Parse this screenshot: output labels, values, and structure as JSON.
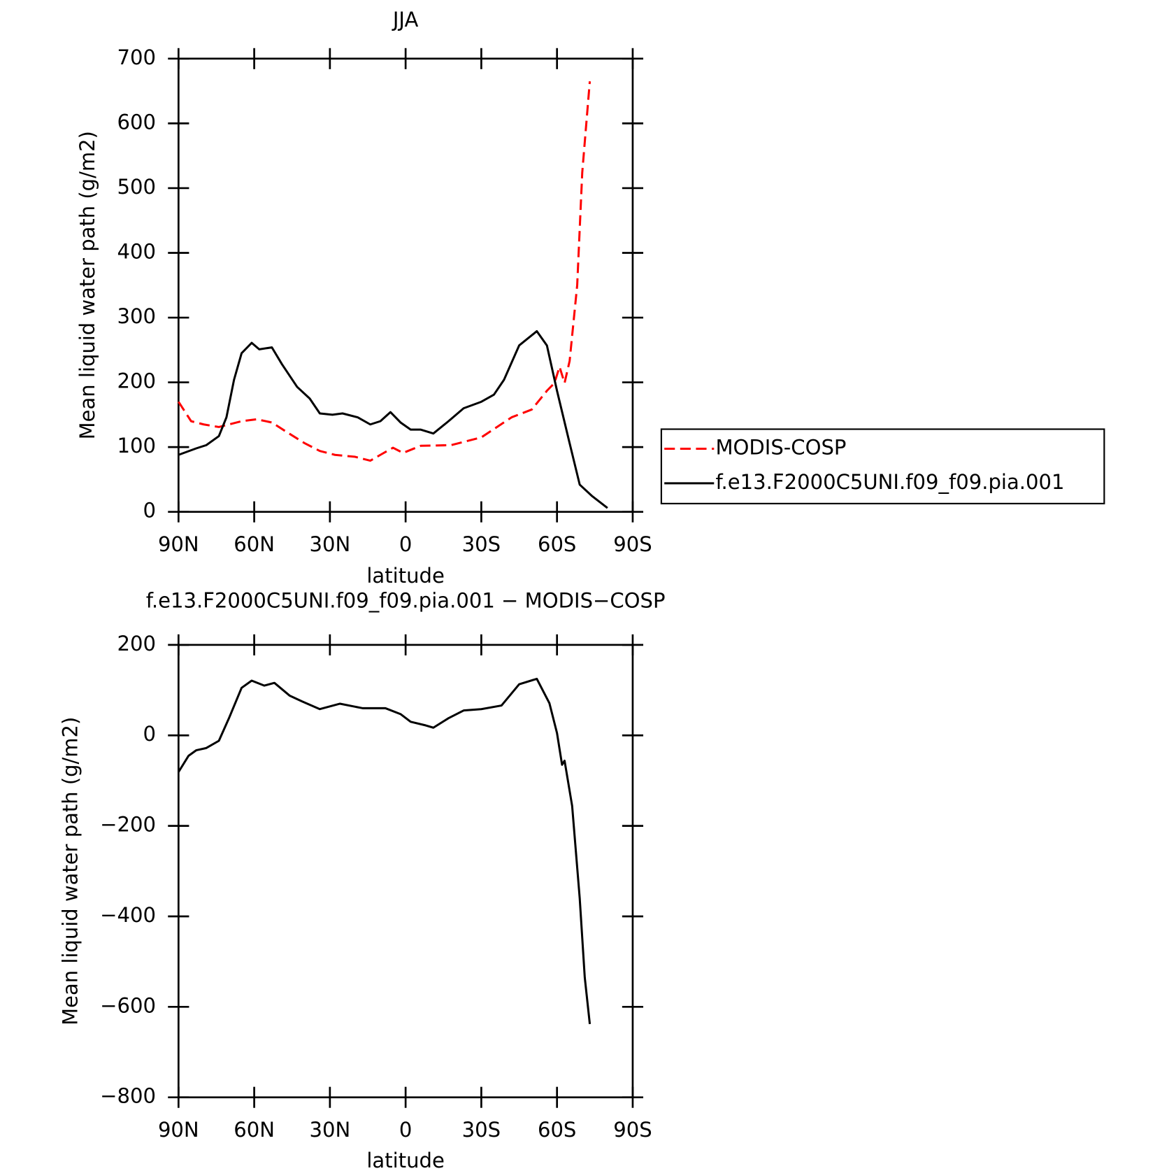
{
  "chart_data": [
    {
      "type": "line",
      "title": "JJA",
      "xlabel": "latitude",
      "ylabel": "Mean liquid water path (g/m2)",
      "xlim": [
        90,
        -90
      ],
      "xticks": [
        {
          "value": 90,
          "label": "90N"
        },
        {
          "value": 60,
          "label": "60N"
        },
        {
          "value": 30,
          "label": "30N"
        },
        0,
        {
          "value": -30,
          "label": "30S"
        },
        {
          "value": -60,
          "label": "60S"
        },
        {
          "value": -90,
          "label": "90S"
        }
      ],
      "ylim": [
        0,
        700
      ],
      "yticks": [
        0,
        100,
        200,
        300,
        400,
        500,
        600,
        700
      ],
      "legend": "right",
      "series": [
        {
          "name": "MODIS-COSP",
          "color": "#ff0000",
          "dash": true,
          "x": [
            90,
            88,
            85,
            80,
            74,
            70,
            65,
            59,
            53,
            47,
            40,
            34,
            28,
            20,
            14,
            10,
            5,
            1,
            -6,
            -18,
            -30,
            -42,
            -50,
            -56,
            -59,
            -61,
            -63,
            -65,
            -68,
            -70,
            -73
          ],
          "values": [
            170,
            158,
            140,
            135,
            131,
            135,
            140,
            143,
            138,
            123,
            106,
            94,
            88,
            85,
            79,
            88,
            99,
            91,
            102,
            103,
            115,
            146,
            158,
            187,
            199,
            224,
            199,
            233,
            350,
            524,
            665
          ]
        },
        {
          "name": "f.e13.F2000C5UNI.f09_f09.pia.001",
          "color": "#000000",
          "dash": false,
          "x": [
            90,
            83,
            79,
            74,
            71,
            68,
            65,
            61,
            58,
            53,
            49,
            43,
            38,
            34,
            29,
            25,
            19,
            14,
            10,
            6,
            2,
            -2,
            -6,
            -11,
            -17,
            -23,
            -30,
            -35,
            -39,
            -45,
            -52,
            -56,
            -60,
            -65,
            -69,
            -74,
            -80
          ],
          "values": [
            88,
            98,
            103,
            117,
            146,
            204,
            245,
            261,
            251,
            254,
            228,
            193,
            175,
            152,
            150,
            152,
            146,
            135,
            140,
            154,
            138,
            127,
            127,
            121,
            140,
            160,
            170,
            181,
            204,
            257,
            279,
            257,
            187,
            106,
            42,
            24,
            6
          ]
        }
      ]
    },
    {
      "type": "line",
      "title": "f.e13.F2000C5UNI.f09_f09.pia.001 − MODIS−COSP",
      "xlabel": "latitude",
      "ylabel": "Mean liquid water path (g/m2)",
      "xlim": [
        90,
        -90
      ],
      "xticks": [
        {
          "value": 90,
          "label": "90N"
        },
        {
          "value": 60,
          "label": "60N"
        },
        {
          "value": 30,
          "label": "30N"
        },
        0,
        {
          "value": -30,
          "label": "30S"
        },
        {
          "value": -60,
          "label": "60S"
        },
        {
          "value": -90,
          "label": "90S"
        }
      ],
      "ylim": [
        -800,
        200
      ],
      "yticks": [
        200,
        0,
        {
          "value": -200,
          "label": "−200"
        },
        {
          "value": -400,
          "label": "−400"
        },
        {
          "value": -600,
          "label": "−600"
        },
        {
          "value": -800,
          "label": "−800"
        }
      ],
      "series": [
        {
          "color": "#000000",
          "dash": false,
          "x": [
            90,
            86,
            83,
            79,
            74,
            70,
            65,
            61,
            56,
            52,
            46,
            41,
            34,
            26,
            17,
            8,
            2,
            -2,
            -8,
            -11,
            -17,
            -23,
            -30,
            -38,
            -45,
            -52,
            -57,
            -60,
            -62,
            -63,
            -66,
            -69,
            -71,
            -73
          ],
          "values": [
            -81,
            -45,
            -33,
            -28,
            -12,
            38,
            105,
            121,
            110,
            116,
            88,
            75,
            58,
            70,
            60,
            60,
            47,
            30,
            22,
            17,
            38,
            55,
            58,
            66,
            113,
            125,
            71,
            5,
            -65,
            -56,
            -156,
            -360,
            -535,
            -638
          ]
        }
      ]
    }
  ]
}
